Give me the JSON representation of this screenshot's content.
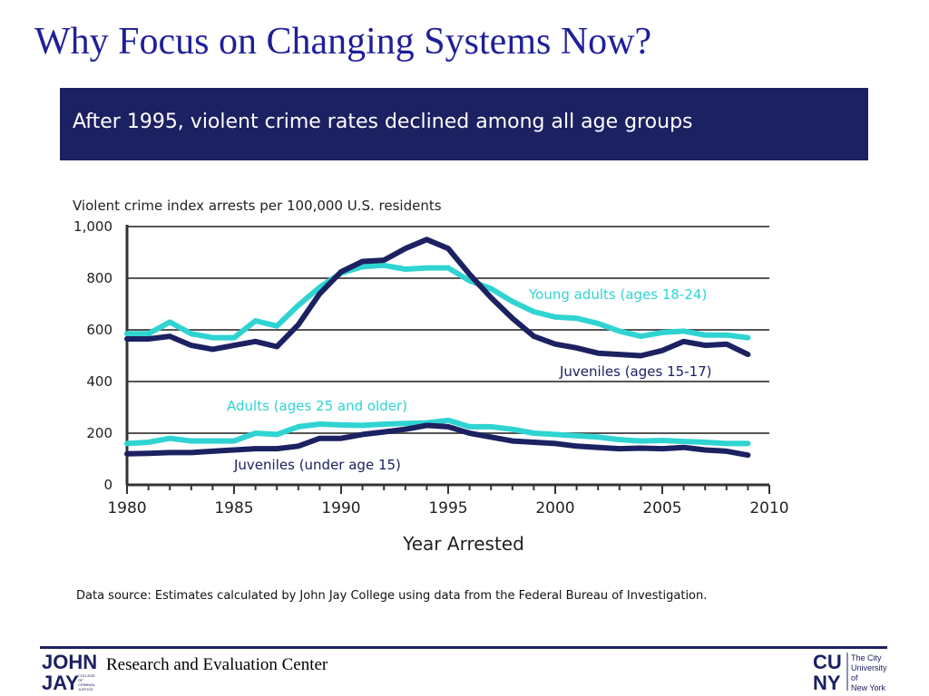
{
  "slide": {
    "title": "Why Focus on Changing Systems Now?"
  },
  "banner": {
    "text": "After 1995, violent crime rates declined among all age groups"
  },
  "chart_data": {
    "type": "line",
    "title": "After 1995, violent crime rates declined among all age groups",
    "ylabel": "Violent crime index arrests per 100,000 U.S. residents",
    "xlabel": "Year Arrested",
    "xlim": [
      1980,
      2010
    ],
    "ylim": [
      0,
      1000
    ],
    "x_ticks": [
      "1980",
      "1985",
      "1990",
      "1995",
      "2000",
      "2005",
      "2010"
    ],
    "y_ticks": [
      "0",
      "200",
      "400",
      "600",
      "800",
      "1,000"
    ],
    "grid": true,
    "colors": {
      "axis": "#333333",
      "grid": "#555555",
      "navy": "#1c2162",
      "teal": "#2fd4d2"
    },
    "x": [
      1980,
      1981,
      1982,
      1983,
      1984,
      1985,
      1986,
      1987,
      1988,
      1989,
      1990,
      1991,
      1992,
      1993,
      1994,
      1995,
      1996,
      1997,
      1998,
      1999,
      2000,
      2001,
      2002,
      2003,
      2004,
      2005,
      2006,
      2007,
      2008,
      2009
    ],
    "series": [
      {
        "name": "Young adults (ages 18-24)",
        "color": "#2fd4d2",
        "values": [
          585,
          585,
          630,
          585,
          570,
          570,
          635,
          615,
          695,
          765,
          820,
          845,
          850,
          835,
          840,
          840,
          790,
          760,
          710,
          670,
          650,
          645,
          625,
          595,
          575,
          590,
          595,
          580,
          580,
          570
        ]
      },
      {
        "name": "Juveniles (ages 15-17)",
        "color": "#1c2162",
        "values": [
          565,
          565,
          575,
          540,
          525,
          540,
          555,
          535,
          620,
          740,
          825,
          865,
          870,
          915,
          950,
          915,
          815,
          725,
          645,
          575,
          545,
          530,
          510,
          505,
          500,
          520,
          555,
          540,
          545,
          505
        ]
      },
      {
        "name": "Adults (ages 25 and older)",
        "color": "#2fd4d2",
        "values": [
          160,
          165,
          180,
          170,
          170,
          170,
          200,
          195,
          225,
          235,
          232,
          230,
          235,
          238,
          240,
          250,
          225,
          225,
          215,
          200,
          195,
          190,
          185,
          175,
          170,
          172,
          168,
          165,
          160,
          160
        ]
      },
      {
        "name": "Juveniles (under age 15)",
        "color": "#1c2162",
        "values": [
          120,
          122,
          125,
          125,
          130,
          135,
          140,
          140,
          150,
          180,
          180,
          195,
          205,
          215,
          230,
          225,
          200,
          185,
          170,
          165,
          160,
          150,
          145,
          140,
          142,
          140,
          145,
          135,
          130,
          115
        ]
      }
    ]
  },
  "source": {
    "text": "Data source: Estimates calculated by John Jay College using data from the Federal Bureau of Investigation."
  },
  "footer": {
    "center_text": "Research and Evaluation Center",
    "left_logo": {
      "line1": "JOHN",
      "line2": "JAY",
      "sub": [
        "COLLEGE",
        "OF",
        "CRIMINAL",
        "JUSTICE"
      ]
    },
    "right_logo": {
      "line1": "CU",
      "line2": "NY",
      "text": [
        "The City",
        "University",
        "of",
        "New York"
      ]
    }
  }
}
